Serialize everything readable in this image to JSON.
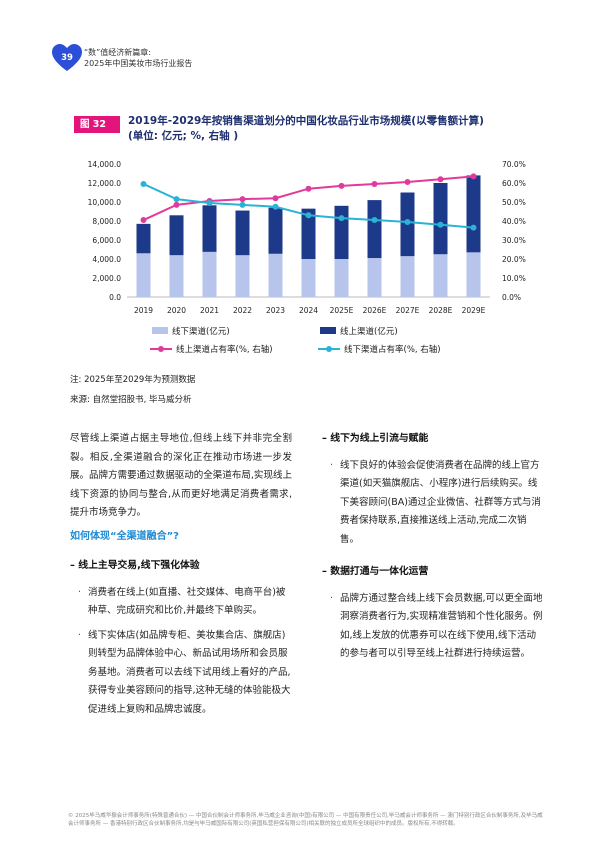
{
  "header": {
    "page_number": "39",
    "line1": "“数”值经济新篇章:",
    "line2": "2025年中国美妆市场行业报告"
  },
  "figure": {
    "tag": "图 32",
    "title_line1": "2019年-2029年按销售渠道划分的中国化妆品行业市场规模(以零售额计算)",
    "title_line2": "(单位: 亿元; %, 右轴 )"
  },
  "chart_data": {
    "type": "bar",
    "categories": [
      "2019",
      "2020",
      "2021",
      "2022",
      "2023",
      "2024",
      "2025E",
      "2026E",
      "2027E",
      "2028E",
      "2029E"
    ],
    "series": [
      {
        "name": "线下渠道(亿元)",
        "kind": "stacked-bar",
        "values": [
          4600,
          4400,
          4750,
          4400,
          4550,
          4000,
          4000,
          4100,
          4300,
          4500,
          4700
        ]
      },
      {
        "name": "线上渠道(亿元)",
        "kind": "stacked-bar",
        "values": [
          3100,
          4200,
          4900,
          4700,
          4850,
          5300,
          5600,
          6100,
          6700,
          7500,
          8100
        ]
      },
      {
        "name": "线上渠道占有率(%, 右轴)",
        "kind": "line",
        "values": [
          40.5,
          48.5,
          50.5,
          51.5,
          52.0,
          57.0,
          58.5,
          59.5,
          60.5,
          62.0,
          63.5
        ]
      },
      {
        "name": "线下渠道占有率(%, 右轴)",
        "kind": "line",
        "values": [
          59.5,
          51.5,
          49.5,
          48.5,
          47.5,
          43.0,
          41.5,
          40.5,
          39.5,
          38.0,
          36.5
        ]
      }
    ],
    "ylim": [
      0,
      14000
    ],
    "y2lim": [
      0,
      70
    ],
    "yticks": [
      "0.0",
      "2,000.0",
      "4,000.0",
      "6,000.0",
      "8,000.0",
      "10,000.0",
      "12,000.0",
      "14,000.0"
    ],
    "y2ticks": [
      "0.0%",
      "10.0%",
      "20.0%",
      "30.0%",
      "40.0%",
      "50.0%",
      "60.0%",
      "70.0%"
    ],
    "colors": {
      "offline_bar": "#b7c5ec",
      "online_bar": "#1d3a8a",
      "online_share": "#e03a9c",
      "offline_share": "#2bb3d6"
    },
    "legend_position": "bottom"
  },
  "notes": {
    "note": "注: 2025年至2029年为预测数据",
    "source": "来源: 自然堂招股书, 毕马威分析"
  },
  "left_column": {
    "lead": "尽管线上渠道占据主导地位,但线上线下并非完全割裂。相反,全渠道融合的深化正在推动市场进一步发展。品牌方需要通过数据驱动的全渠道布局,实现线上线下资源的协同与整合,从而更好地满足消费者需求,提升市场竞争力。",
    "question": "如何体现“全渠道融合”?",
    "heading": "–  线上主导交易,线下强化体验",
    "bullet1": "消费者在线上(如直播、社交媒体、电商平台)被种草、完成研究和比价,并最终下单购买。",
    "bullet2": "线下实体店(如品牌专柜、美妆集合店、旗舰店)则转型为品牌体验中心、新品试用场所和会员服务基地。消费者可以去线下试用线上看好的产品,获得专业美容顾问的指导,这种无缝的体验能极大促进线上复购和品牌忠诚度。"
  },
  "right_column": {
    "heading1": "–  线下为线上引流与赋能",
    "bullet1": "线下良好的体验会促使消费者在品牌的线上官方渠道(如天猫旗舰店、小程序)进行后续购买。线下美容顾问(BA)通过企业微信、社群等方式与消费者保持联系,直接推送线上活动,完成二次销售。",
    "heading2": "–  数据打通与一体化运营",
    "bullet2": "品牌方通过整合线上线下会员数据,可以更全面地洞察消费者行为,实现精准营销和个性化服务。例如,线上发放的优惠券可以在线下使用,线下活动的参与者可以引导至线上社群进行持续运营。"
  },
  "footer": "© 2025毕马威华振会计师事务所(特殊普通合伙) — 中国合伙制会计师事务所,毕马威企业咨询(中国)有限公司 — 中国有限责任公司,毕马威会计师事务所 — 澳门特别行政区合伙制事务所,及毕马威会计师事务所 — 香港特别行政区合伙制事务所,均是与毕马威国际有限公司(英国私营担保有限公司)相关联的独立成员所全球组织中的成员。版权所有,不得转载。"
}
